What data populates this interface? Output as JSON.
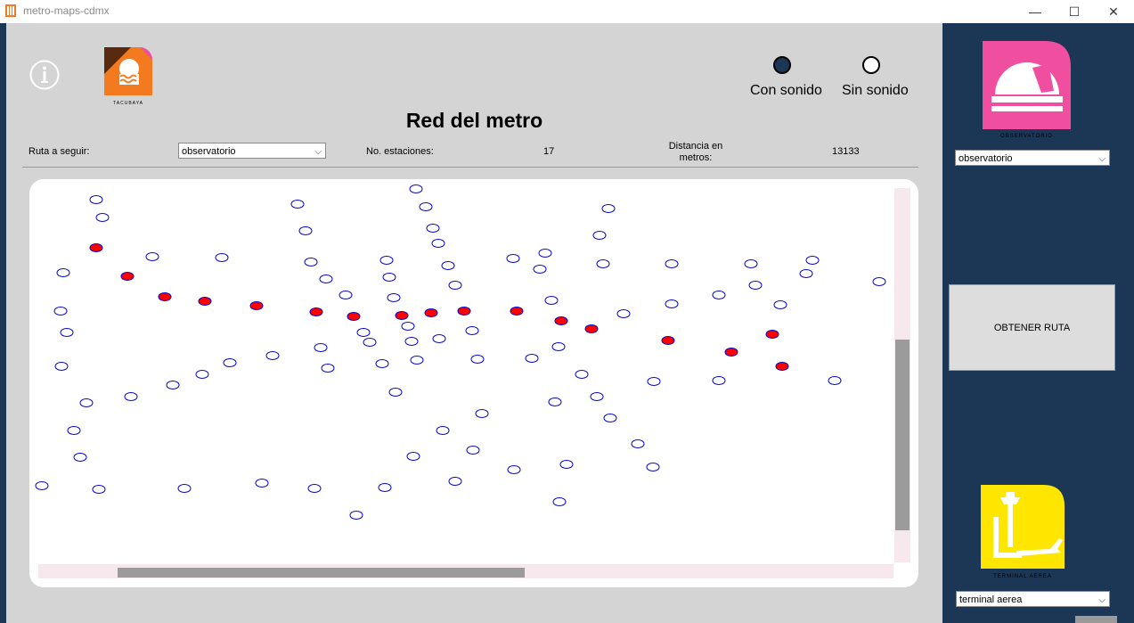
{
  "window": {
    "title": "metro-maps-cdmx",
    "minimize": "—",
    "maximize": "☐",
    "close": "✕"
  },
  "header": {
    "top_logo_caption": "TACUBAYA",
    "sound_on_label": "Con sonido",
    "sound_off_label": "Sin sonido",
    "selected_sound": "Con sonido",
    "title": "Red del metro"
  },
  "controls": {
    "route_label": "Ruta a seguir:",
    "route_value": "observatorio",
    "stations_label": "No. estaciones:",
    "stations_value": "17",
    "distance_label": "Distancia en metros:",
    "distance_value": "13133"
  },
  "map": {
    "route_station_color": "#ff0000",
    "station_outline_color": "#0000cc"
  },
  "sidebar": {
    "origin_caption": "OBSERVATORIO",
    "origin_select": "observatorio",
    "action_button": "OBTENER RUTA",
    "destination_caption": "TERMINAL AEREA",
    "destination_select": "terminal aerea"
  },
  "colors": {
    "panel": "#1c3656",
    "pink": "#f04fa0",
    "yellow": "#ffe600",
    "orange": "#f47a20"
  }
}
